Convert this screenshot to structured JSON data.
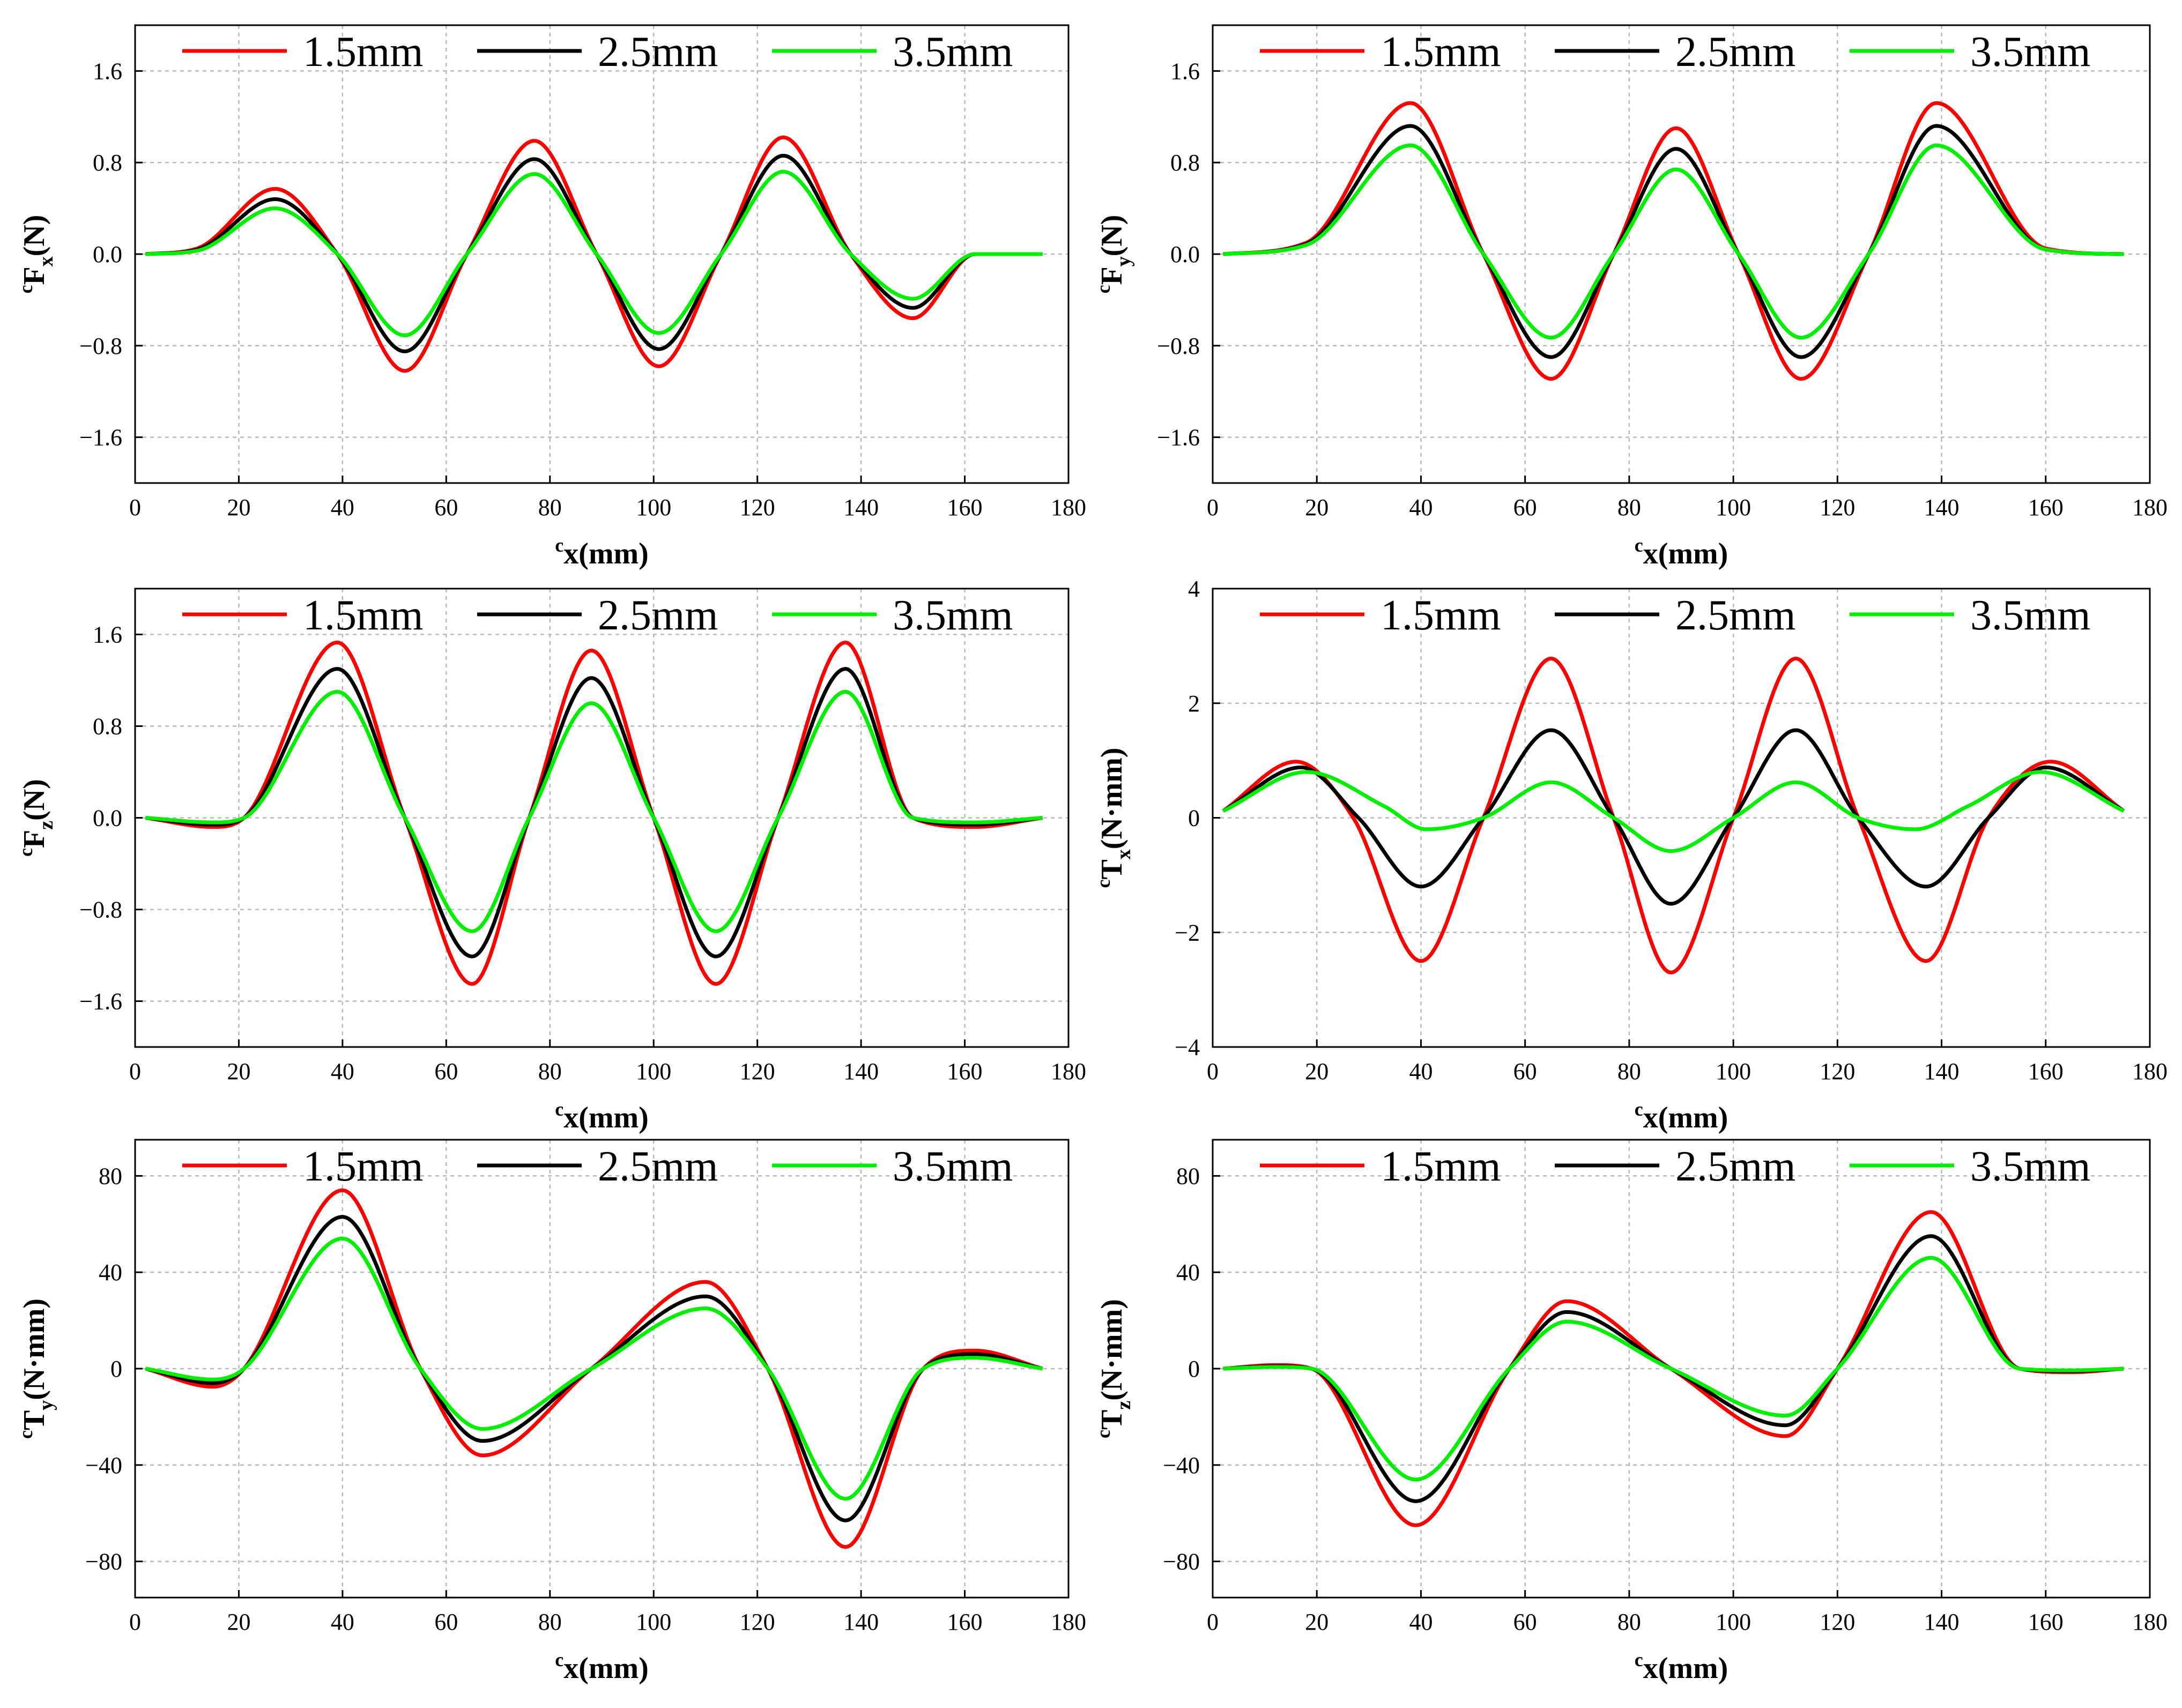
{
  "chart_data": [
    {
      "id": "fx",
      "type": "line",
      "ylabel": {
        "sup": "c",
        "main": "F",
        "sub": "x",
        "unit": "(N)"
      },
      "xlabel": {
        "sup": "c",
        "main": "x(mm)"
      },
      "xlim": [
        0,
        180
      ],
      "ylim": [
        -2.0,
        2.0
      ],
      "xticks": [
        0,
        20,
        40,
        60,
        80,
        100,
        120,
        140,
        160,
        180
      ],
      "yticks": [
        -1.6,
        -0.8,
        0.0,
        0.8,
        1.6
      ],
      "ytick_labels": [
        "−1.6",
        "−0.8",
        "0.0",
        "0.8",
        "1.6"
      ],
      "grid": true,
      "legend_position": "top",
      "series": [
        {
          "name": "1.5mm",
          "color": "#ff0000",
          "x": [
            2,
            12,
            27,
            39,
            52,
            64,
            77,
            89,
            101,
            113,
            125,
            138,
            150,
            162,
            175
          ],
          "y": [
            0,
            0.05,
            0.57,
            0,
            -1.02,
            0,
            0.99,
            0,
            -0.98,
            0,
            1.02,
            0,
            -0.56,
            0,
            0
          ]
        },
        {
          "name": "2.5mm",
          "color": "#000000",
          "x": [
            2,
            12,
            27,
            39,
            52,
            64,
            77,
            89,
            101,
            113,
            125,
            138,
            150,
            162,
            175
          ],
          "y": [
            0,
            0.04,
            0.48,
            0,
            -0.85,
            0,
            0.83,
            0,
            -0.83,
            0,
            0.86,
            0,
            -0.47,
            0,
            0
          ]
        },
        {
          "name": "3.5mm",
          "color": "#00ee00",
          "x": [
            2,
            12,
            27,
            39,
            52,
            64,
            77,
            89,
            101,
            113,
            125,
            138,
            150,
            162,
            175
          ],
          "y": [
            0,
            0.03,
            0.4,
            0,
            -0.71,
            0,
            0.7,
            0,
            -0.69,
            0,
            0.72,
            0,
            -0.39,
            0,
            0
          ]
        }
      ]
    },
    {
      "id": "fy",
      "type": "line",
      "ylabel": {
        "sup": "c",
        "main": "F",
        "sub": "y",
        "unit": "(N)"
      },
      "xlabel": {
        "sup": "c",
        "main": "x(mm)"
      },
      "xlim": [
        0,
        180
      ],
      "ylim": [
        -2.0,
        2.0
      ],
      "xticks": [
        0,
        20,
        40,
        60,
        80,
        100,
        120,
        140,
        160,
        180
      ],
      "yticks": [
        -1.6,
        -0.8,
        0.0,
        0.8,
        1.6
      ],
      "ytick_labels": [
        "−1.6",
        "−0.8",
        "0.0",
        "0.8",
        "1.6"
      ],
      "grid": true,
      "legend_position": "top",
      "series": [
        {
          "name": "1.5mm",
          "color": "#ff0000",
          "x": [
            2,
            18,
            38,
            52,
            65,
            77,
            89,
            101,
            113,
            126,
            139,
            160,
            175
          ],
          "y": [
            0,
            0.1,
            1.32,
            0,
            -1.09,
            0,
            1.1,
            0,
            -1.09,
            0,
            1.32,
            0.05,
            0
          ]
        },
        {
          "name": "2.5mm",
          "color": "#000000",
          "x": [
            2,
            18,
            38,
            52,
            65,
            77,
            89,
            101,
            113,
            126,
            139,
            160,
            175
          ],
          "y": [
            0,
            0.09,
            1.12,
            0,
            -0.9,
            0,
            0.92,
            0,
            -0.9,
            0,
            1.12,
            0.04,
            0
          ]
        },
        {
          "name": "3.5mm",
          "color": "#00ee00",
          "x": [
            2,
            18,
            38,
            52,
            65,
            77,
            89,
            101,
            113,
            126,
            139,
            160,
            175
          ],
          "y": [
            0,
            0.08,
            0.95,
            0,
            -0.73,
            0,
            0.74,
            0,
            -0.73,
            0,
            0.95,
            0.04,
            0
          ]
        }
      ]
    },
    {
      "id": "fz",
      "type": "line",
      "ylabel": {
        "sup": "c",
        "main": "F",
        "sub": "z",
        "unit": "(N)"
      },
      "xlabel": {
        "sup": "c",
        "main": "x(mm)"
      },
      "xlim": [
        0,
        180
      ],
      "ylim": [
        -2.0,
        2.0
      ],
      "xticks": [
        0,
        20,
        40,
        60,
        80,
        100,
        120,
        140,
        160,
        180
      ],
      "yticks": [
        -1.6,
        -0.8,
        0.0,
        0.8,
        1.6
      ],
      "ytick_labels": [
        "−1.6",
        "−0.8",
        "0.0",
        "0.8",
        "1.6"
      ],
      "grid": true,
      "legend_position": "top",
      "series": [
        {
          "name": "1.5mm",
          "color": "#ff0000",
          "x": [
            2,
            15,
            21,
            39,
            52,
            65,
            76,
            88,
            100,
            112,
            124,
            137,
            150,
            162,
            175
          ],
          "y": [
            0,
            -0.08,
            0,
            1.53,
            0,
            -1.45,
            0,
            1.46,
            0,
            -1.45,
            0,
            1.53,
            0,
            -0.08,
            0
          ]
        },
        {
          "name": "2.5mm",
          "color": "#000000",
          "x": [
            2,
            15,
            21,
            39,
            52,
            65,
            76,
            88,
            100,
            112,
            124,
            137,
            150,
            162,
            175
          ],
          "y": [
            0,
            -0.06,
            0,
            1.3,
            0,
            -1.21,
            0,
            1.22,
            0,
            -1.21,
            0,
            1.3,
            0,
            -0.06,
            0
          ]
        },
        {
          "name": "3.5mm",
          "color": "#00ee00",
          "x": [
            2,
            15,
            21,
            39,
            52,
            65,
            76,
            88,
            100,
            112,
            124,
            137,
            150,
            162,
            175
          ],
          "y": [
            0,
            -0.04,
            0,
            1.1,
            0,
            -0.99,
            0,
            1.0,
            0,
            -0.99,
            0,
            1.1,
            0,
            -0.04,
            0
          ]
        }
      ]
    },
    {
      "id": "tx",
      "type": "line",
      "ylabel": {
        "sup": "c",
        "main": "T",
        "sub": "x",
        "unit": "(N·mm)"
      },
      "xlabel": {
        "sup": "c",
        "main": "x(mm)"
      },
      "xlim": [
        0,
        180
      ],
      "ylim": [
        -4,
        4
      ],
      "xticks": [
        0,
        20,
        40,
        60,
        80,
        100,
        120,
        140,
        160,
        180
      ],
      "yticks": [
        -4,
        -2,
        0,
        2,
        4
      ],
      "ytick_labels": [
        "−4",
        "−2",
        "0",
        "2",
        "4"
      ],
      "grid": true,
      "legend_position": "top",
      "series": [
        {
          "name": "1.5mm",
          "color": "#ff0000",
          "x": [
            2,
            16,
            27,
            40,
            52,
            65,
            77,
            88,
            100,
            112,
            124,
            137,
            149,
            161,
            175
          ],
          "y": [
            0.12,
            0.98,
            0,
            -2.5,
            0,
            2.78,
            0,
            -2.7,
            0,
            2.78,
            0,
            -2.5,
            0,
            0.98,
            0.12
          ]
        },
        {
          "name": "2.5mm",
          "color": "#000000",
          "x": [
            2,
            17,
            28,
            40,
            52,
            65,
            77,
            88,
            100,
            112,
            124,
            137,
            149,
            160,
            175
          ],
          "y": [
            0.12,
            0.88,
            0,
            -1.2,
            0,
            1.53,
            0,
            -1.5,
            0,
            1.53,
            0,
            -1.2,
            0,
            0.88,
            0.12
          ]
        },
        {
          "name": "3.5mm",
          "color": "#00ee00",
          "x": [
            2,
            18,
            33,
            41,
            52,
            65,
            77,
            88,
            100,
            112,
            124,
            135,
            145,
            159,
            175
          ],
          "y": [
            0.12,
            0.8,
            0.2,
            -0.2,
            0,
            0.62,
            0,
            -0.58,
            0,
            0.62,
            0,
            -0.2,
            0.2,
            0.8,
            0.12
          ]
        }
      ]
    },
    {
      "id": "ty",
      "type": "line",
      "ylabel": {
        "sup": "c",
        "main": "T",
        "sub": "y",
        "unit": "(N·mm)"
      },
      "xlabel": {
        "sup": "c",
        "main": "x(mm)"
      },
      "xlim": [
        0,
        180
      ],
      "ylim": [
        -95,
        95
      ],
      "xticks": [
        0,
        20,
        40,
        60,
        80,
        100,
        120,
        140,
        160,
        180
      ],
      "yticks": [
        -80,
        -40,
        0,
        40,
        80
      ],
      "ytick_labels": [
        "−80",
        "−40",
        "0",
        "40",
        "80"
      ],
      "grid": true,
      "legend_position": "top",
      "series": [
        {
          "name": "1.5mm",
          "color": "#ff0000",
          "x": [
            2,
            15,
            21,
            40,
            55,
            67,
            88,
            110,
            122,
            137,
            152,
            162,
            175
          ],
          "y": [
            0,
            -7.5,
            0,
            74,
            0,
            -36,
            0,
            36,
            0,
            -74,
            0,
            7.5,
            0
          ]
        },
        {
          "name": "2.5mm",
          "color": "#000000",
          "x": [
            2,
            15,
            21,
            40,
            55,
            67,
            88,
            110,
            122,
            137,
            152,
            162,
            175
          ],
          "y": [
            0,
            -6,
            0,
            63,
            0,
            -30,
            0,
            30,
            0,
            -63,
            0,
            6,
            0
          ]
        },
        {
          "name": "3.5mm",
          "color": "#00ee00",
          "x": [
            2,
            15,
            21,
            40,
            55,
            67,
            88,
            110,
            122,
            137,
            152,
            162,
            175
          ],
          "y": [
            0,
            -4.5,
            0,
            54,
            0,
            -25,
            0,
            25,
            0,
            -54,
            0,
            4.5,
            0
          ]
        }
      ]
    },
    {
      "id": "tz",
      "type": "line",
      "ylabel": {
        "sup": "c",
        "main": "T",
        "sub": "z",
        "unit": "(N·mm)"
      },
      "xlabel": {
        "sup": "c",
        "main": "x(mm)"
      },
      "xlim": [
        0,
        180
      ],
      "ylim": [
        -95,
        95
      ],
      "xticks": [
        0,
        20,
        40,
        60,
        80,
        100,
        120,
        140,
        160,
        180
      ],
      "yticks": [
        -80,
        -40,
        0,
        40,
        80
      ],
      "ytick_labels": [
        "−80",
        "−40",
        "0",
        "40",
        "80"
      ],
      "grid": true,
      "legend_position": "top",
      "series": [
        {
          "name": "1.5mm",
          "color": "#ff0000",
          "x": [
            2,
            12,
            19,
            39,
            57,
            68,
            88,
            110,
            120,
            138,
            155,
            165,
            175
          ],
          "y": [
            0,
            1.5,
            0,
            -65,
            0,
            28,
            0,
            -28,
            0,
            65,
            0,
            -1.5,
            0
          ]
        },
        {
          "name": "2.5mm",
          "color": "#000000",
          "x": [
            2,
            12,
            19,
            39,
            57,
            68,
            88,
            110,
            120,
            138,
            155,
            165,
            175
          ],
          "y": [
            0,
            1.0,
            0,
            -55,
            0,
            23.5,
            0,
            -23.5,
            0,
            55,
            0,
            -1.0,
            0
          ]
        },
        {
          "name": "3.5mm",
          "color": "#00ee00",
          "x": [
            2,
            12,
            19,
            39,
            57,
            68,
            88,
            110,
            120,
            138,
            155,
            165,
            175
          ],
          "y": [
            0,
            0.7,
            0,
            -46,
            0,
            19.5,
            0,
            -19.5,
            0,
            46,
            0,
            -0.7,
            0
          ]
        }
      ]
    }
  ]
}
